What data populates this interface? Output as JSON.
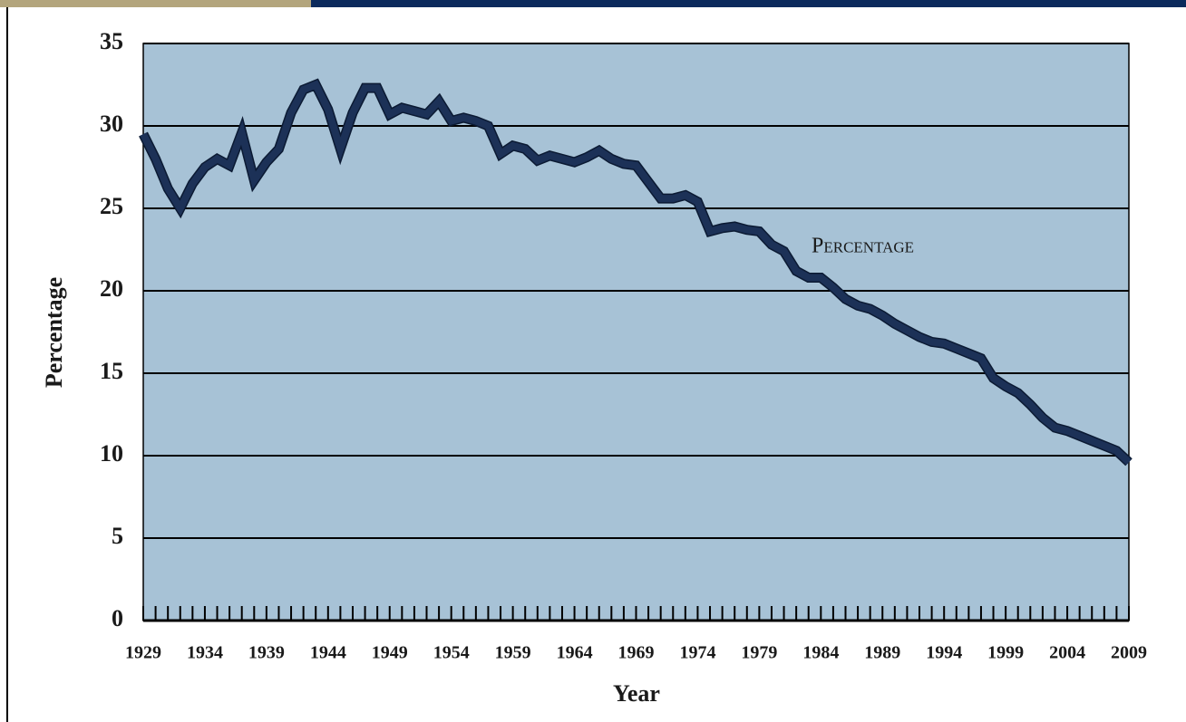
{
  "chart_data": {
    "type": "line",
    "y_label": "Percentage",
    "x_label": "Year",
    "annotation": "Percentage",
    "x": [
      1929,
      1930,
      1931,
      1932,
      1933,
      1934,
      1935,
      1936,
      1937,
      1938,
      1939,
      1940,
      1941,
      1942,
      1943,
      1944,
      1945,
      1946,
      1947,
      1948,
      1949,
      1950,
      1951,
      1952,
      1953,
      1954,
      1955,
      1956,
      1957,
      1958,
      1959,
      1960,
      1961,
      1962,
      1963,
      1964,
      1965,
      1966,
      1967,
      1968,
      1969,
      1970,
      1971,
      1972,
      1973,
      1974,
      1975,
      1976,
      1977,
      1978,
      1979,
      1980,
      1981,
      1982,
      1983,
      1984,
      1985,
      1986,
      1987,
      1988,
      1989,
      1990,
      1991,
      1992,
      1993,
      1994,
      1995,
      1996,
      1997,
      1998,
      1999,
      2000,
      2001,
      2002,
      2003,
      2004,
      2005,
      2006,
      2007,
      2008,
      2009
    ],
    "series": [
      {
        "name": "Percentage",
        "color": "#1c3157",
        "values": [
          29.5,
          28.0,
          26.2,
          25.0,
          26.5,
          27.5,
          28.0,
          27.6,
          29.6,
          26.7,
          27.8,
          28.6,
          30.8,
          32.2,
          32.5,
          31.0,
          28.6,
          30.8,
          32.3,
          32.3,
          30.7,
          31.1,
          30.9,
          30.7,
          31.5,
          30.3,
          30.5,
          30.3,
          30.0,
          28.3,
          28.8,
          28.6,
          27.9,
          28.2,
          28.0,
          27.8,
          28.1,
          28.5,
          28.0,
          27.7,
          27.6,
          26.6,
          25.6,
          25.6,
          25.8,
          25.4,
          23.6,
          23.8,
          23.9,
          23.7,
          23.6,
          22.8,
          22.4,
          21.2,
          20.8,
          20.8,
          20.2,
          19.5,
          19.1,
          18.9,
          18.5,
          18.0,
          17.6,
          17.2,
          16.9,
          16.8,
          16.5,
          16.2,
          15.9,
          14.7,
          14.2,
          13.8,
          13.1,
          12.3,
          11.7,
          11.5,
          11.2,
          10.9,
          10.6,
          10.3,
          9.6
        ]
      }
    ],
    "xlim": [
      1929,
      2009
    ],
    "xticks": [
      1929,
      1934,
      1939,
      1944,
      1949,
      1954,
      1959,
      1964,
      1969,
      1974,
      1979,
      1984,
      1989,
      1994,
      1999,
      2004,
      2009
    ],
    "ylim": [
      0,
      35
    ],
    "yticks": [
      0,
      5,
      10,
      15,
      20,
      25,
      30,
      35
    ],
    "grid": true,
    "plot_background": "#a7c2d6"
  }
}
